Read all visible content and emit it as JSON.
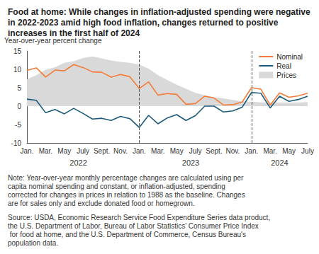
{
  "chart_data": {
    "type": "line",
    "title": "Food at home: While changes in inflation-adjusted spending were negative in 2022-2023 amid high food inflation, changes returned to positive increases in the first half of 2024",
    "y_label": "Year-over-year percent change",
    "note": "Note: Year-over-year monthly percentage changes are calculated using per capita nominal spending and constant, or inflation-adjusted, spending corrected for changes in prices in relation to 1988 as the baseline. Changes are for sales only and exclude donated food or homegrown.",
    "source": "Source: USDA, Economic Research Service Food Expenditure Series data product, the U.S. Department of Labor, Bureau of Labor Statistics' Consumer Price Index for food at home, and the U.S. Department of Commerce, Census Bureau's population data.",
    "categories": [
      "Jan.",
      null,
      "Mar.",
      null,
      "May",
      null,
      "July",
      null,
      "Sept.",
      null,
      "Nov.",
      null,
      "Jan.",
      null,
      "Mar.",
      null,
      "May",
      null,
      "July",
      null,
      "Sept.",
      null,
      "Nov.",
      null,
      "Jan.",
      null,
      "Mar.",
      null,
      "May",
      null,
      "July"
    ],
    "year_labels": [
      "2022",
      "2023",
      "2024"
    ],
    "series": [
      {
        "name": "Prices",
        "type": "area",
        "color": "#d9d9d9",
        "values": [
          7.3,
          8.4,
          9.9,
          10.6,
          11.8,
          12.2,
          13.1,
          13.5,
          13.0,
          12.4,
          12.0,
          11.8,
          11.3,
          10.2,
          8.4,
          7.1,
          5.8,
          4.7,
          3.6,
          3.0,
          2.4,
          2.1,
          1.7,
          1.3,
          1.2,
          1.0,
          1.0,
          1.0,
          1.0,
          1.0,
          1.1
        ]
      },
      {
        "name": "Nominal",
        "type": "line",
        "color": "#f47b38",
        "values": [
          9.7,
          10.4,
          7.9,
          9.8,
          9.6,
          11.3,
          10.5,
          9.3,
          9.2,
          7.9,
          8.6,
          8.0,
          4.8,
          6.6,
          3.0,
          3.4,
          3.2,
          0.5,
          0.7,
          2.7,
          2.2,
          0.3,
          0.4,
          1.1,
          5.0,
          4.6,
          0.3,
          3.6,
          2.4,
          2.8,
          3.5
        ]
      },
      {
        "name": "Real",
        "type": "line",
        "color": "#1b5a7a",
        "values": [
          1.9,
          1.6,
          -1.8,
          -0.9,
          -2.1,
          -0.6,
          -2.0,
          -3.5,
          -3.3,
          -3.9,
          -2.8,
          -3.4,
          -5.8,
          -2.5,
          -4.8,
          -3.2,
          -2.3,
          -3.9,
          -2.6,
          0.0,
          0.0,
          -1.6,
          -1.3,
          -0.3,
          3.7,
          3.5,
          -0.5,
          2.7,
          1.3,
          1.8,
          2.7
        ]
      }
    ],
    "ylim": [
      -10,
      15
    ],
    "yticks": [
      -10,
      -5,
      0,
      5,
      10,
      15
    ],
    "grid": false,
    "legend": "upper right"
  }
}
